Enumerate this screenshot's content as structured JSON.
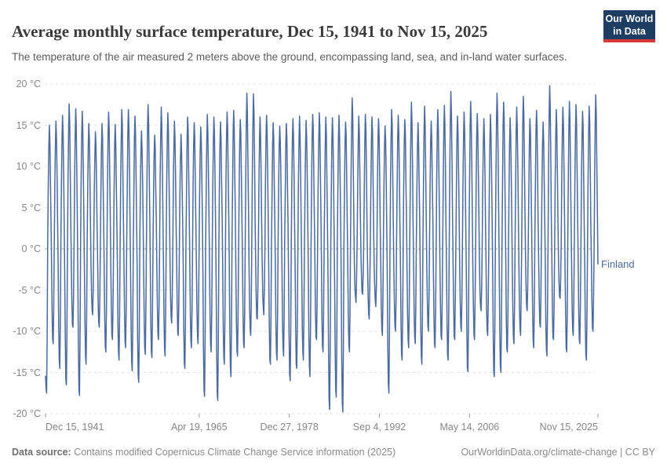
{
  "header": {
    "title": "Average monthly surface temperature, Dec 15, 1941 to Nov 15, 2025",
    "subtitle": "The temperature of the air measured 2 meters above the ground, encompassing land, sea, and in-land water surfaces."
  },
  "logo": {
    "line1": "Our World",
    "line2": "in Data",
    "bg_color": "#1d3d63",
    "accent_color": "#d73937"
  },
  "footer": {
    "source_label": "Data source:",
    "source_text": " Contains modified Copernicus Climate Change Service information (2025)",
    "link_text": "OurWorldinData.org/climate-change | CC BY"
  },
  "chart_data": {
    "type": "line",
    "title": "Average monthly surface temperature, Dec 15, 1941 to Nov 15, 2025",
    "entity_label": "Finland",
    "unit": "°C",
    "line_color": "#4C6A9C",
    "grid_color": "#e1e1e1",
    "zero_line_color": "#a6a6a6",
    "axis_text_color": "#868686",
    "grid": true,
    "legend_position": "right-of-line-end",
    "ylim": [
      -20,
      20
    ],
    "y_ticks": [
      20,
      15,
      10,
      5,
      0,
      -5,
      -10,
      -15,
      -20
    ],
    "time_start": 1941.958,
    "time_end": 2025.875,
    "x_ticks": [
      {
        "label": "Dec 15, 1941",
        "t": 1941.958,
        "align": "start"
      },
      {
        "label": "Apr 19, 1965",
        "t": 1965.3,
        "align": "center"
      },
      {
        "label": "Dec 27, 1978",
        "t": 1978.99,
        "align": "center"
      },
      {
        "label": "Sep 4, 1992",
        "t": 1992.68,
        "align": "center"
      },
      {
        "label": "May 14, 2006",
        "t": 2006.37,
        "align": "center"
      },
      {
        "label": "Nov 15, 2025",
        "t": 2025.875,
        "align": "end"
      }
    ],
    "series_model": "monthly values reconstructed from per-year seasonal extremes applied to a 12-month climatology",
    "climatology": [
      -8.5,
      -9.0,
      -5.5,
      0.5,
      7.5,
      13.0,
      16.0,
      14.0,
      9.0,
      3.5,
      -1.5,
      -6.0
    ],
    "clim_summer_ref": 16.0,
    "clim_winter_ref": -9.0,
    "first_year": 1942,
    "dec_1941_value": -15.4,
    "winter_min": [
      -17.5,
      -11.5,
      -14.5,
      -16.5,
      -9.5,
      -17.8,
      -14.0,
      -8.0,
      -9.5,
      -12.5,
      -11.0,
      -13.5,
      -12.0,
      -14.8,
      -16.2,
      -12.8,
      -13.2,
      -11.0,
      -13.0,
      -9.0,
      -10.5,
      -14.5,
      -12.0,
      -11.5,
      -17.9,
      -12.5,
      -18.4,
      -14.0,
      -15.5,
      -13.0,
      -12.0,
      -10.5,
      -8.5,
      -8.0,
      -14.0,
      -13.5,
      -13.0,
      -16.0,
      -14.5,
      -13.5,
      -15.5,
      -11.0,
      -12.5,
      -19.5,
      -18.0,
      -19.8,
      -12.5,
      -6.5,
      -5.5,
      -8.5,
      -7.0,
      -10.5,
      -17.5,
      -10.0,
      -13.5,
      -12.0,
      -11.5,
      -14.0,
      -10.0,
      -12.0,
      -11.0,
      -13.5,
      -11.0,
      -10.0,
      -14.9,
      -11.0,
      -7.5,
      -10.5,
      -15.5,
      -15.0,
      -12.5,
      -11.5,
      -10.5,
      -7.5,
      -12.0,
      -9.5,
      -13.0,
      -11.0,
      -6.0,
      -12.5,
      -10.5,
      -11.5,
      -13.5,
      -10.0
    ],
    "summer_max": [
      15.0,
      15.5,
      16.2,
      17.6,
      17.0,
      16.7,
      15.2,
      14.2,
      15.2,
      16.6,
      15.1,
      16.9,
      16.9,
      16.1,
      14.3,
      17.5,
      13.8,
      17.2,
      16.5,
      15.5,
      13.9,
      16.0,
      15.3,
      14.8,
      16.3,
      16.0,
      15.4,
      16.6,
      16.8,
      15.7,
      18.9,
      18.8,
      16.0,
      16.2,
      15.3,
      14.9,
      15.2,
      15.8,
      16.1,
      15.6,
      16.3,
      16.5,
      16.0,
      15.9,
      16.2,
      15.4,
      18.3,
      16.1,
      16.3,
      16.0,
      15.8,
      14.9,
      16.9,
      16.2,
      15.7,
      17.8,
      15.3,
      17.3,
      15.5,
      16.9,
      17.4,
      19.1,
      16.1,
      16.6,
      17.9,
      16.4,
      15.8,
      16.3,
      18.9,
      17.8,
      15.9,
      17.2,
      18.5,
      15.8,
      16.8,
      15.4,
      19.8,
      16.9,
      17.2,
      17.9,
      17.5,
      16.7,
      17.3,
      18.7
    ],
    "jitter": {
      "seed": 19412025,
      "amp": 1.1
    }
  }
}
